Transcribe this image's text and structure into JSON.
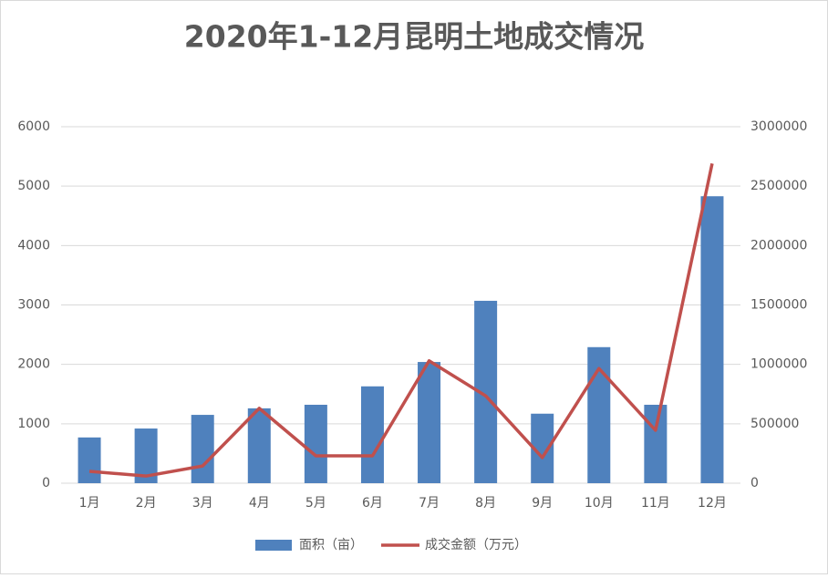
{
  "chart_data": {
    "type": "bar",
    "title": "2020年1-12月昆明土地成交情况",
    "categories": [
      "1月",
      "2月",
      "3月",
      "4月",
      "5月",
      "6月",
      "7月",
      "8月",
      "9月",
      "10月",
      "11月",
      "12月"
    ],
    "series": [
      {
        "name": "面积（亩）",
        "type": "bar",
        "color": "#4f81bd",
        "values": [
          770,
          920,
          1150,
          1260,
          1320,
          1630,
          2040,
          3070,
          1170,
          2290,
          1320,
          4830
        ]
      },
      {
        "name": "成交金额（万元）",
        "type": "line",
        "axis": "y2",
        "color": "#c0504d",
        "values": [
          100000,
          60000,
          145000,
          630000,
          230000,
          230000,
          1030000,
          735000,
          215000,
          965000,
          445000,
          2690000
        ]
      }
    ],
    "ylim": [
      0,
      6000
    ],
    "yticks": [
      0,
      1000,
      2000,
      3000,
      4000,
      5000,
      6000
    ],
    "y2lim": [
      0,
      3000000
    ],
    "y2ticks": [
      0,
      500000,
      1000000,
      1500000,
      2000000,
      2500000,
      3000000
    ],
    "grid": true,
    "legend": "bottom"
  }
}
